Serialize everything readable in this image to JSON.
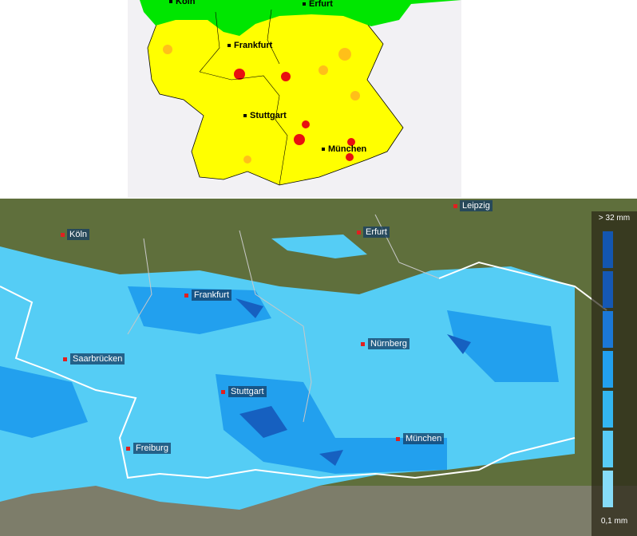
{
  "warning_map": {
    "cities": [
      {
        "name": "Köln"
      },
      {
        "name": "Erfurt"
      },
      {
        "name": "Frankfurt"
      },
      {
        "name": "Stuttgart"
      },
      {
        "name": "München"
      }
    ],
    "colors": {
      "no_warning": "#00e600",
      "warning": "#ffff00",
      "moderate": "#ffb020",
      "severe": "#e81010",
      "background": "#f2f1f4"
    }
  },
  "radar_map": {
    "cities": [
      {
        "name": "Leipzig"
      },
      {
        "name": "Köln"
      },
      {
        "name": "Erfurt"
      },
      {
        "name": "Frankfurt"
      },
      {
        "name": "Nürnberg"
      },
      {
        "name": "Saarbrücken"
      },
      {
        "name": "Stuttgart"
      },
      {
        "name": "München"
      },
      {
        "name": "Freiburg"
      }
    ],
    "legend": {
      "max_label": "> 32 mm",
      "min_label": "0,1 mm",
      "colors": [
        "#1356b0",
        "#1558b4",
        "#1b78d6",
        "#22a0ee",
        "#33b6f0",
        "#58cbf4",
        "#86dcf8"
      ]
    }
  }
}
